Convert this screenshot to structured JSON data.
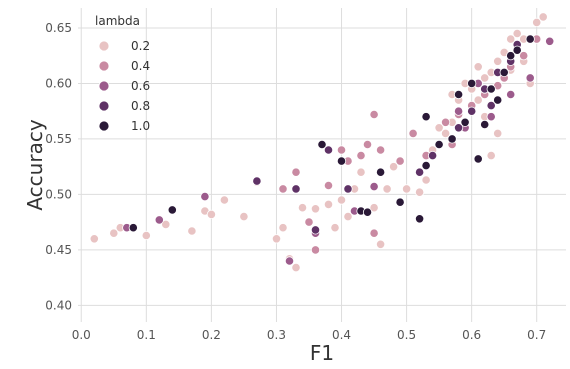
{
  "chart_data": {
    "type": "scatter",
    "xlabel": "F1",
    "ylabel": "Accuracy",
    "xlim": [
      -0.005,
      0.745
    ],
    "ylim": [
      0.385,
      0.668
    ],
    "xticks": [
      0.0,
      0.1,
      0.2,
      0.3,
      0.4,
      0.5,
      0.6,
      0.7
    ],
    "yticks": [
      0.4,
      0.45,
      0.5,
      0.55,
      0.6,
      0.65
    ],
    "xtick_labels": [
      "0.0",
      "0.1",
      "0.2",
      "0.3",
      "0.4",
      "0.5",
      "0.6",
      "0.7"
    ],
    "ytick_labels": [
      "0.40",
      "0.45",
      "0.50",
      "0.55",
      "0.60",
      "0.65"
    ],
    "grid": true,
    "legend": {
      "title": "lambda",
      "placement": "top-left",
      "entries": [
        {
          "label": "0.2",
          "color": "#e8c3c3"
        },
        {
          "label": "0.4",
          "color": "#c98aa2"
        },
        {
          "label": "0.6",
          "color": "#9c5b8c"
        },
        {
          "label": "0.8",
          "color": "#5f3266"
        },
        {
          "label": "1.0",
          "color": "#2a1937"
        }
      ]
    },
    "series": [
      {
        "name": "0.2",
        "color": "#e8c3c3",
        "points": [
          [
            0.02,
            0.46
          ],
          [
            0.05,
            0.465
          ],
          [
            0.06,
            0.47
          ],
          [
            0.1,
            0.463
          ],
          [
            0.13,
            0.473
          ],
          [
            0.17,
            0.467
          ],
          [
            0.19,
            0.485
          ],
          [
            0.2,
            0.482
          ],
          [
            0.22,
            0.495
          ],
          [
            0.25,
            0.48
          ],
          [
            0.27,
            0.511
          ],
          [
            0.3,
            0.46
          ],
          [
            0.31,
            0.47
          ],
          [
            0.32,
            0.442
          ],
          [
            0.33,
            0.434
          ],
          [
            0.34,
            0.488
          ],
          [
            0.36,
            0.487
          ],
          [
            0.38,
            0.491
          ],
          [
            0.39,
            0.47
          ],
          [
            0.4,
            0.495
          ],
          [
            0.41,
            0.48
          ],
          [
            0.42,
            0.505
          ],
          [
            0.43,
            0.52
          ],
          [
            0.45,
            0.488
          ],
          [
            0.46,
            0.455
          ],
          [
            0.47,
            0.505
          ],
          [
            0.48,
            0.525
          ],
          [
            0.5,
            0.505
          ],
          [
            0.52,
            0.502
          ],
          [
            0.53,
            0.513
          ],
          [
            0.56,
            0.555
          ],
          [
            0.57,
            0.565
          ],
          [
            0.58,
            0.585
          ],
          [
            0.59,
            0.6
          ],
          [
            0.6,
            0.595
          ],
          [
            0.61,
            0.585
          ],
          [
            0.62,
            0.605
          ],
          [
            0.63,
            0.61
          ],
          [
            0.64,
            0.62
          ],
          [
            0.65,
            0.628
          ],
          [
            0.66,
            0.64
          ],
          [
            0.67,
            0.645
          ],
          [
            0.68,
            0.64
          ],
          [
            0.7,
            0.655
          ],
          [
            0.71,
            0.66
          ],
          [
            0.63,
            0.535
          ],
          [
            0.55,
            0.56
          ],
          [
            0.57,
            0.59
          ],
          [
            0.61,
            0.615
          ],
          [
            0.66,
            0.612
          ],
          [
            0.69,
            0.6
          ],
          [
            0.54,
            0.54
          ],
          [
            0.62,
            0.57
          ],
          [
            0.64,
            0.555
          ],
          [
            0.68,
            0.62
          ]
        ]
      },
      {
        "name": "0.4",
        "color": "#c98aa2",
        "points": [
          [
            0.31,
            0.505
          ],
          [
            0.33,
            0.52
          ],
          [
            0.35,
            0.475
          ],
          [
            0.36,
            0.45
          ],
          [
            0.38,
            0.508
          ],
          [
            0.4,
            0.54
          ],
          [
            0.41,
            0.53
          ],
          [
            0.43,
            0.535
          ],
          [
            0.44,
            0.545
          ],
          [
            0.45,
            0.572
          ],
          [
            0.45,
            0.465
          ],
          [
            0.46,
            0.54
          ],
          [
            0.49,
            0.53
          ],
          [
            0.51,
            0.555
          ],
          [
            0.53,
            0.535
          ],
          [
            0.56,
            0.565
          ],
          [
            0.58,
            0.572
          ],
          [
            0.6,
            0.58
          ],
          [
            0.62,
            0.59
          ],
          [
            0.64,
            0.598
          ],
          [
            0.66,
            0.615
          ],
          [
            0.68,
            0.625
          ],
          [
            0.7,
            0.64
          ],
          [
            0.57,
            0.545
          ],
          [
            0.65,
            0.605
          ]
        ]
      },
      {
        "name": "0.6",
        "color": "#9c5b8c",
        "points": [
          [
            0.07,
            0.47
          ],
          [
            0.12,
            0.477
          ],
          [
            0.19,
            0.498
          ],
          [
            0.32,
            0.44
          ],
          [
            0.36,
            0.465
          ],
          [
            0.42,
            0.485
          ],
          [
            0.45,
            0.507
          ],
          [
            0.55,
            0.545
          ],
          [
            0.58,
            0.575
          ],
          [
            0.61,
            0.6
          ],
          [
            0.63,
            0.57
          ],
          [
            0.66,
            0.59
          ],
          [
            0.69,
            0.605
          ],
          [
            0.72,
            0.638
          ],
          [
            0.59,
            0.56
          ]
        ]
      },
      {
        "name": "0.8",
        "color": "#5f3266",
        "points": [
          [
            0.27,
            0.512
          ],
          [
            0.33,
            0.505
          ],
          [
            0.36,
            0.468
          ],
          [
            0.38,
            0.54
          ],
          [
            0.41,
            0.505
          ],
          [
            0.46,
            0.52
          ],
          [
            0.52,
            0.52
          ],
          [
            0.54,
            0.535
          ],
          [
            0.58,
            0.56
          ],
          [
            0.6,
            0.575
          ],
          [
            0.62,
            0.595
          ],
          [
            0.64,
            0.61
          ],
          [
            0.66,
            0.62
          ],
          [
            0.67,
            0.635
          ],
          [
            0.63,
            0.58
          ]
        ]
      },
      {
        "name": "1.0",
        "color": "#2a1937",
        "points": [
          [
            0.08,
            0.47
          ],
          [
            0.14,
            0.486
          ],
          [
            0.37,
            0.545
          ],
          [
            0.4,
            0.53
          ],
          [
            0.43,
            0.485
          ],
          [
            0.44,
            0.484
          ],
          [
            0.46,
            0.52
          ],
          [
            0.49,
            0.493
          ],
          [
            0.52,
            0.478
          ],
          [
            0.53,
            0.526
          ],
          [
            0.55,
            0.545
          ],
          [
            0.57,
            0.55
          ],
          [
            0.59,
            0.565
          ],
          [
            0.61,
            0.532
          ],
          [
            0.62,
            0.563
          ],
          [
            0.64,
            0.585
          ],
          [
            0.65,
            0.61
          ],
          [
            0.66,
            0.625
          ],
          [
            0.67,
            0.63
          ],
          [
            0.69,
            0.64
          ],
          [
            0.53,
            0.57
          ],
          [
            0.58,
            0.59
          ],
          [
            0.6,
            0.6
          ],
          [
            0.63,
            0.595
          ]
        ]
      }
    ]
  }
}
